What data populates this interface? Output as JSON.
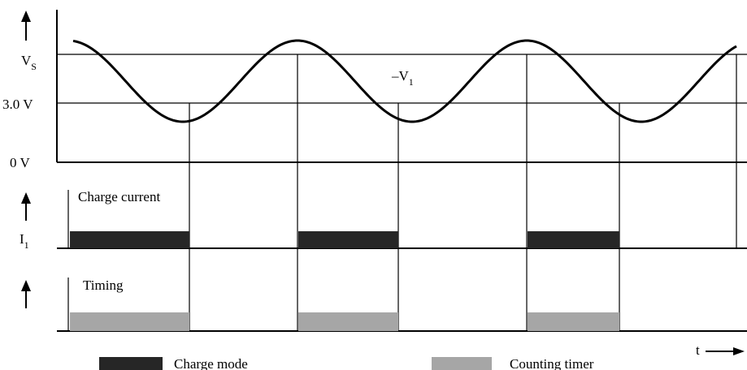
{
  "voltage_labels": {
    "vs_main": "V",
    "vs_sub": "S",
    "three_v": "3.0 V",
    "zero_v": "0 V"
  },
  "wave_label": {
    "main": "–V",
    "sub": "1"
  },
  "current_panel": {
    "title": "Charge current",
    "axis_main": "I",
    "axis_sub": "1"
  },
  "timing_panel": {
    "title": "Timing"
  },
  "time_axis_label": "t",
  "legend": {
    "charge_mode": "Charge mode",
    "counting_timer": "Counting timer"
  },
  "colors": {
    "charge_mode": "#262626",
    "counting_timer": "#a6a6a6"
  }
}
